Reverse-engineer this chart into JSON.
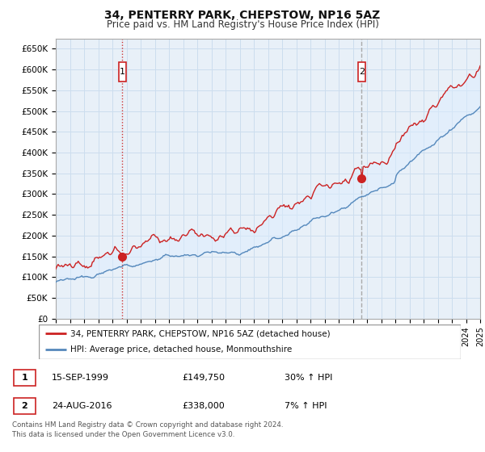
{
  "title": "34, PENTERRY PARK, CHEPSTOW, NP16 5AZ",
  "subtitle": "Price paid vs. HM Land Registry's House Price Index (HPI)",
  "ylabel_ticks": [
    "£0",
    "£50K",
    "£100K",
    "£150K",
    "£200K",
    "£250K",
    "£300K",
    "£350K",
    "£400K",
    "£450K",
    "£500K",
    "£550K",
    "£600K",
    "£650K"
  ],
  "ytick_values": [
    0,
    50000,
    100000,
    150000,
    200000,
    250000,
    300000,
    350000,
    400000,
    450000,
    500000,
    550000,
    600000,
    650000
  ],
  "ylim": [
    0,
    675000
  ],
  "xlim_start": 1995,
  "xlim_end": 2025,
  "sale1_date": 1999.71,
  "sale1_price": 149750,
  "sale1_label": "1",
  "sale2_date": 2016.62,
  "sale2_price": 338000,
  "sale2_label": "2",
  "vline1_color": "#cc3333",
  "vline1_style": ":",
  "vline2_color": "#aaaaaa",
  "vline2_style": "--",
  "red_line_color": "#cc2222",
  "blue_line_color": "#5588bb",
  "fill_color": "#ddeeff",
  "fill_alpha": 0.5,
  "marker_color": "#cc2222",
  "label_box_color": "#cc2222",
  "legend_entry1": "34, PENTERRY PARK, CHEPSTOW, NP16 5AZ (detached house)",
  "legend_entry2": "HPI: Average price, detached house, Monmouthshire",
  "table_row1": [
    "1",
    "15-SEP-1999",
    "£149,750",
    "30% ↑ HPI"
  ],
  "table_row2": [
    "2",
    "24-AUG-2016",
    "£338,000",
    "7% ↑ HPI"
  ],
  "footer": "Contains HM Land Registry data © Crown copyright and database right 2024.\nThis data is licensed under the Open Government Licence v3.0.",
  "background_color": "#ffffff",
  "grid_color": "#ccddee",
  "chart_bg": "#e8f0f8"
}
